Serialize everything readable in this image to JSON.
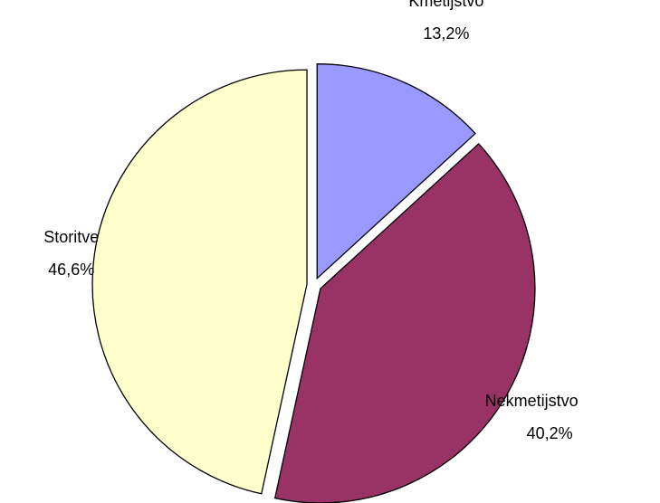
{
  "chart_data": {
    "type": "pie",
    "categories": [
      "Kmetijstvo",
      "Nekmetijstvo",
      "Storitve"
    ],
    "values": [
      13.2,
      40.2,
      46.6
    ],
    "value_labels": [
      "13,2%",
      "40,2%",
      "46,6%"
    ],
    "colors": [
      "#9999ff",
      "#993366",
      "#ffffcc"
    ]
  }
}
